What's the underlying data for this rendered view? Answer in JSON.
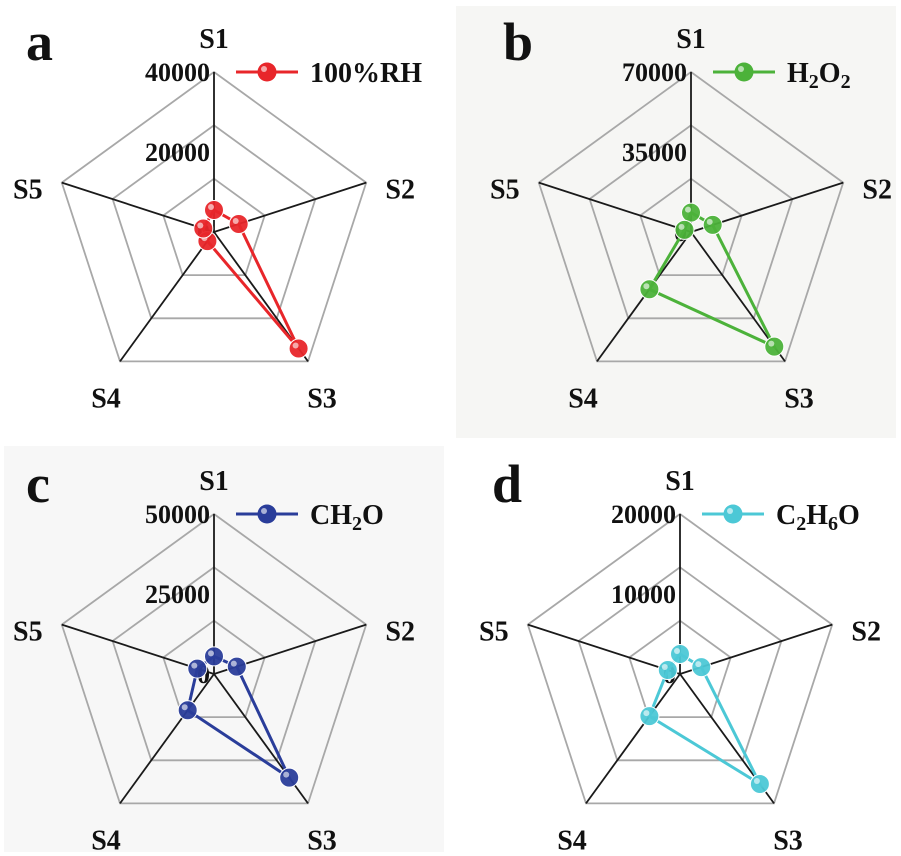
{
  "chart_data": [
    {
      "type": "radar",
      "panel": "a",
      "axes": [
        "S1",
        "S2",
        "S3",
        "S4",
        "S5"
      ],
      "rlim": [
        0,
        40000
      ],
      "ticks": [
        "0",
        "20000",
        "40000"
      ],
      "legend": {
        "text": "100%RH",
        "placement": "top-right"
      },
      "series": [
        {
          "name": "100%RH",
          "color": "#e8262a",
          "values": [
            5500,
            6500,
            36000,
            2800,
            2800
          ]
        }
      ]
    },
    {
      "type": "radar",
      "panel": "b",
      "axes": [
        "S1",
        "S2",
        "S3",
        "S4",
        "S5"
      ],
      "rlim": [
        0,
        70000
      ],
      "ticks": [
        "0",
        "35000",
        "70000"
      ],
      "legend": {
        "text": "H2O2",
        "parts": [
          [
            "H",
            ""
          ],
          [
            "2",
            "sub"
          ],
          [
            "O",
            ""
          ],
          [
            "2",
            "sub"
          ]
        ],
        "placement": "top-right"
      },
      "series": [
        {
          "name": "H2O2",
          "color": "#4cb23a",
          "values": [
            8500,
            10000,
            62000,
            31000,
            3000
          ]
        }
      ]
    },
    {
      "type": "radar",
      "panel": "c",
      "axes": [
        "S1",
        "S2",
        "S3",
        "S4",
        "S5"
      ],
      "rlim": [
        0,
        50000
      ],
      "ticks": [
        "0",
        "25000",
        "50000"
      ],
      "legend": {
        "text": "CH2O",
        "parts": [
          [
            "CH",
            ""
          ],
          [
            "2",
            "sub"
          ],
          [
            "O",
            ""
          ]
        ],
        "placement": "top-right"
      },
      "series": [
        {
          "name": "CH2O",
          "color": "#2a3d9a",
          "values": [
            5500,
            7500,
            40000,
            14000,
            5500
          ]
        }
      ]
    },
    {
      "type": "radar",
      "panel": "d",
      "axes": [
        "S1",
        "S2",
        "S3",
        "S4",
        "S5"
      ],
      "rlim": [
        0,
        20000
      ],
      "ticks": [
        "0",
        "10000",
        "20000"
      ],
      "legend": {
        "text": "C2H6O",
        "parts": [
          [
            "C",
            ""
          ],
          [
            "2",
            "sub"
          ],
          [
            "H",
            ""
          ],
          [
            "6",
            "sub"
          ],
          [
            "O",
            ""
          ]
        ],
        "placement": "top-right"
      },
      "series": [
        {
          "name": "C2H6O",
          "color": "#4cc8d6",
          "values": [
            2500,
            2800,
            17000,
            6500,
            1600
          ]
        }
      ]
    }
  ]
}
